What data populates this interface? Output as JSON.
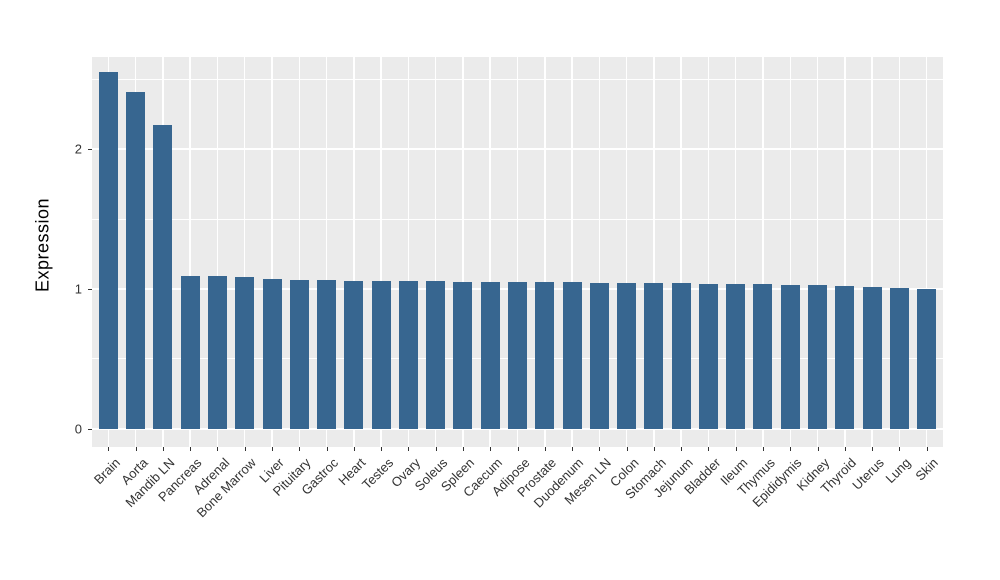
{
  "chart_data": {
    "type": "bar",
    "title": "",
    "xlabel": "",
    "ylabel": "Expression",
    "categories": [
      "Brain",
      "Aorta",
      "Mandib LN",
      "Pancreas",
      "Adrenal",
      "Bone Marrow",
      "Liver",
      "Pituitary",
      "Gastroc",
      "Heart",
      "Testes",
      "Ovary",
      "Soleus",
      "Spleen",
      "Caecum",
      "Adipose",
      "Prostate",
      "Duodenum",
      "Mesen LN",
      "Colon",
      "Stomach",
      "Jejunum",
      "Bladder",
      "Ileum",
      "Thymus",
      "Epididymis",
      "Kidney",
      "Thyroid",
      "Uterus",
      "Lung",
      "Skin"
    ],
    "values": [
      2.55,
      2.41,
      2.17,
      1.095,
      1.09,
      1.085,
      1.072,
      1.066,
      1.062,
      1.06,
      1.058,
      1.056,
      1.055,
      1.053,
      1.051,
      1.05,
      1.05,
      1.048,
      1.046,
      1.044,
      1.042,
      1.04,
      1.038,
      1.036,
      1.034,
      1.032,
      1.028,
      1.025,
      1.018,
      1.008,
      1.002
    ],
    "ytick_labels": [
      "0",
      "1",
      "2"
    ],
    "ytick_values": [
      0,
      1,
      2
    ],
    "minor_tick_values": [
      0.5,
      1.5,
      2.5
    ],
    "ylim": [
      -0.13,
      2.66
    ],
    "grid": "on",
    "legend_position": "none",
    "colors": {
      "bar_fill": "#376690",
      "panel_background": "#EBEBEB",
      "gridline": "#FFFFFF",
      "axis_text": "#333333",
      "axis_title": "#000000"
    }
  }
}
